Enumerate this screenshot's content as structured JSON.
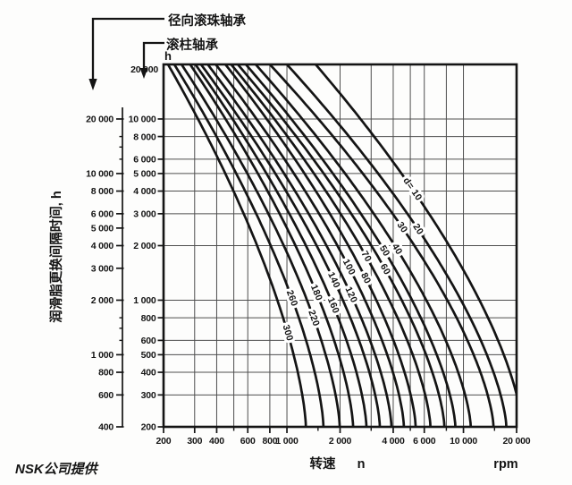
{
  "annotations": {
    "ball_bearing": "径向滚珠轴承",
    "roller_bearing": "滚柱轴承",
    "hours_unit": "h",
    "top_scale_value": "20 000"
  },
  "y_axis": {
    "title": "润滑脂更换间隔时间, h",
    "ball_scale_labels": [
      {
        "value": 20000,
        "label": "20 000"
      },
      {
        "value": 10000,
        "label": "10 000"
      },
      {
        "value": 8000,
        "label": "8 000"
      },
      {
        "value": 6000,
        "label": "6 000"
      },
      {
        "value": 5000,
        "label": "5 000"
      },
      {
        "value": 4000,
        "label": "4 000"
      },
      {
        "value": 3000,
        "label": "3 000"
      },
      {
        "value": 2000,
        "label": "2 000"
      },
      {
        "value": 1000,
        "label": "1 000"
      },
      {
        "value": 800,
        "label": "800"
      },
      {
        "value": 600,
        "label": "600"
      },
      {
        "value": 400,
        "label": "400"
      }
    ],
    "ball_scale_minor_ticks": [
      16000,
      14000,
      12000,
      1600,
      1400,
      1200
    ],
    "roller_scale_labels": [
      {
        "value": 10000,
        "label": "10 000"
      },
      {
        "value": 8000,
        "label": "8 000"
      },
      {
        "value": 6000,
        "label": "6 000"
      },
      {
        "value": 5000,
        "label": "5 000"
      },
      {
        "value": 4000,
        "label": "4 000"
      },
      {
        "value": 3000,
        "label": "3 000"
      },
      {
        "value": 2000,
        "label": "2 000"
      },
      {
        "value": 1000,
        "label": "1 000"
      },
      {
        "value": 800,
        "label": "800"
      },
      {
        "value": 600,
        "label": "600"
      },
      {
        "value": 500,
        "label": "500"
      },
      {
        "value": 400,
        "label": "400"
      },
      {
        "value": 300,
        "label": "300"
      },
      {
        "value": 200,
        "label": "200"
      }
    ]
  },
  "x_axis": {
    "title": "转速",
    "variable": "n",
    "unit": "rpm",
    "labels": [
      {
        "value": 200,
        "label": "200"
      },
      {
        "value": 300,
        "label": "300"
      },
      {
        "value": 400,
        "label": "400"
      },
      {
        "value": 600,
        "label": "600"
      },
      {
        "value": 800,
        "label": "800"
      },
      {
        "value": 1000,
        "label": "1 000"
      },
      {
        "value": 2000,
        "label": "2 000"
      },
      {
        "value": 4000,
        "label": "4 000"
      },
      {
        "value": 6000,
        "label": "6 000"
      },
      {
        "value": 10000,
        "label": "10 000"
      },
      {
        "value": 20000,
        "label": "20 000"
      }
    ],
    "minor_ticks": [
      500,
      1500,
      3000,
      5000,
      8000,
      15000
    ]
  },
  "credit": "NSK公司提供",
  "colors": {
    "ink": "#141414",
    "grid": "#4e4e4e",
    "background": "#fdfdfc"
  },
  "chart_data": {
    "type": "line",
    "log_log": true,
    "xlabel": "转速 n (rpm)",
    "ylabel": "润滑脂更换间隔时间, h",
    "x_range_rpm": [
      200,
      20000
    ],
    "y_range_hours_roller_bearing_scale": [
      200,
      20000
    ],
    "y_range_hours_radial_ball_bearing_scale": [
      400,
      40000
    ],
    "scale_note": "ball-bearing interval scale reads 2x the roller-bearing (frame) scale",
    "x_gridlines_rpm": [
      300,
      400,
      500,
      600,
      800,
      1000,
      2000,
      3000,
      4000,
      5000,
      6000,
      8000,
      10000
    ],
    "y_gridlines_hours": [
      300,
      400,
      500,
      600,
      800,
      1000,
      2000,
      3000,
      4000,
      5000,
      6000,
      8000,
      10000
    ],
    "curve_shape_exponent": 1.5,
    "series": [
      {
        "d_mm": 10,
        "label": "d= 10",
        "rpm_at_20000h": 1455,
        "rpm_at_200h": 21500,
        "label_at_hours": 4100
      },
      {
        "d_mm": 20,
        "label": "20",
        "rpm_at_20000h": 1000,
        "rpm_at_200h": 17500,
        "label_at_hours": 2460
      },
      {
        "d_mm": 30,
        "label": "30",
        "rpm_at_20000h": 800,
        "rpm_at_200h": 14800,
        "label_at_hours": 2520
      },
      {
        "d_mm": 40,
        "label": "40",
        "rpm_at_20000h": 665,
        "rpm_at_200h": 11000,
        "label_at_hours": 1910
      },
      {
        "d_mm": 50,
        "label": "50",
        "rpm_at_20000h": 585,
        "rpm_at_200h": 9000,
        "label_at_hours": 1870
      },
      {
        "d_mm": 60,
        "label": "60",
        "rpm_at_20000h": 527,
        "rpm_at_200h": 7800,
        "label_at_hours": 1480
      },
      {
        "d_mm": 70,
        "label": "70",
        "rpm_at_20000h": 483,
        "rpm_at_200h": 6500,
        "label_at_hours": 1740
      },
      {
        "d_mm": 80,
        "label": "80",
        "rpm_at_20000h": 448,
        "rpm_at_200h": 5360,
        "label_at_hours": 1320
      },
      {
        "d_mm": 100,
        "label": "100",
        "rpm_at_20000h": 395,
        "rpm_at_200h": 4600,
        "label_at_hours": 1520
      },
      {
        "d_mm": 120,
        "label": "120",
        "rpm_at_20000h": 356,
        "rpm_at_200h": 3910,
        "label_at_hours": 1070
      },
      {
        "d_mm": 140,
        "label": "140",
        "rpm_at_20000h": 326,
        "rpm_at_200h": 3360,
        "label_at_hours": 1290
      },
      {
        "d_mm": 160,
        "label": "160",
        "rpm_at_20000h": 303,
        "rpm_at_200h": 2820,
        "label_at_hours": 935
      },
      {
        "d_mm": 180,
        "label": "180",
        "rpm_at_20000h": 283,
        "rpm_at_200h": 2370,
        "label_at_hours": 1100
      },
      {
        "d_mm": 220,
        "label": "220",
        "rpm_at_20000h": 253,
        "rpm_at_200h": 1990,
        "label_at_hours": 795
      },
      {
        "d_mm": 260,
        "label": "260",
        "rpm_at_20000h": 230,
        "rpm_at_200h": 1610,
        "label_at_hours": 1025
      },
      {
        "d_mm": 300,
        "label": "300",
        "rpm_at_20000h": 212,
        "rpm_at_200h": 1280,
        "label_at_hours": 660
      }
    ]
  }
}
